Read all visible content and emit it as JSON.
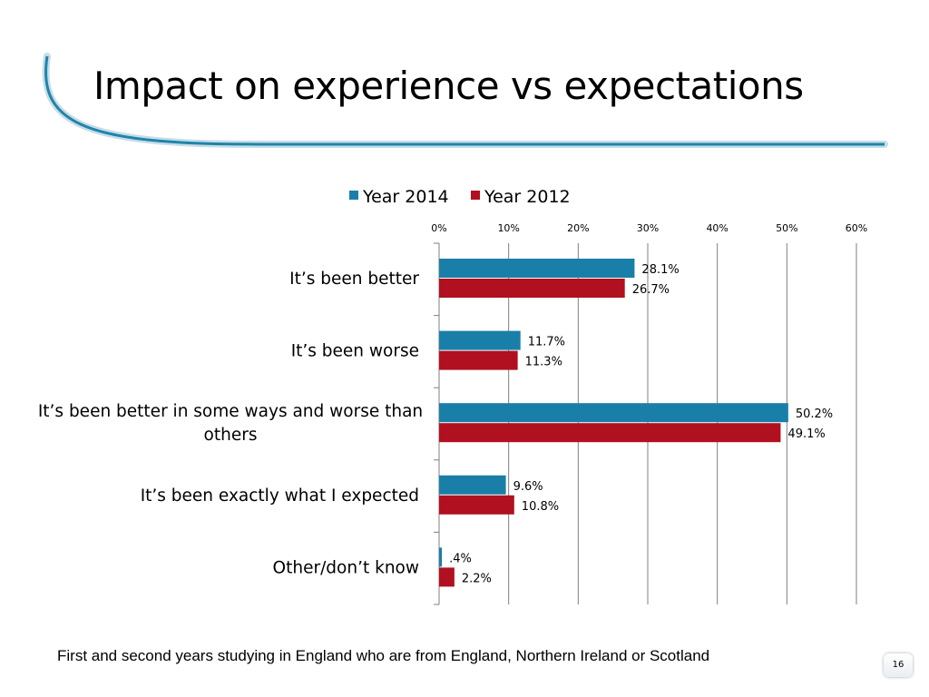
{
  "slide": {
    "title": "Impact on experience vs expectations",
    "footnote": "First and second years studying in England who are from England, Northern Ireland or Scotland",
    "page_number": "16"
  },
  "colors": {
    "year2014": "#1a7fa8",
    "year2012": "#b0101f",
    "swoosh": "#1e84aa"
  },
  "chart_data": {
    "type": "bar",
    "orientation": "horizontal",
    "title": "",
    "categories": [
      "It’s been better",
      "It’s been worse",
      "It’s been better in some ways and worse than others",
      "It’s been exactly what I expected",
      "Other/don’t know"
    ],
    "category_lines": [
      [
        "It’s been better"
      ],
      [
        "It’s been worse"
      ],
      [
        "It’s been better in some ways and worse than",
        "others"
      ],
      [
        "It’s been exactly what I expected"
      ],
      [
        "Other/don’t know"
      ]
    ],
    "series": [
      {
        "name": "Year 2014",
        "values": [
          28.1,
          11.7,
          50.2,
          9.6,
          0.4
        ],
        "labels": [
          "28.1%",
          "11.7%",
          "50.2%",
          "9.6%",
          ".4%"
        ]
      },
      {
        "name": "Year 2012",
        "values": [
          26.7,
          11.3,
          49.1,
          10.8,
          2.2
        ],
        "labels": [
          "26.7%",
          "11.3%",
          "49.1%",
          "10.8%",
          "2.2%"
        ]
      }
    ],
    "xlim": [
      0,
      60
    ],
    "xticks": [
      0,
      10,
      20,
      30,
      40,
      50,
      60
    ],
    "xtick_labels": [
      "0%",
      "10%",
      "20%",
      "30%",
      "40%",
      "50%",
      "60%"
    ],
    "xaxis_position": "top",
    "grid": true,
    "legend_position": "top"
  }
}
